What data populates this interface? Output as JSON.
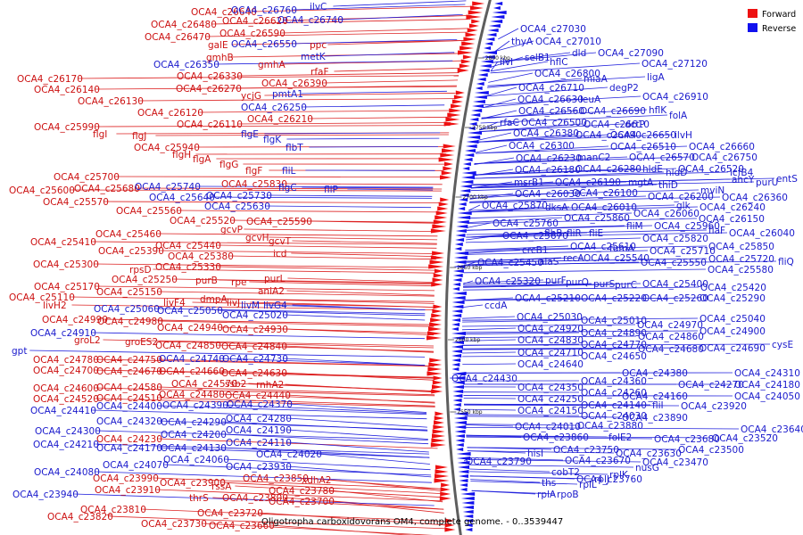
{
  "caption": "Oligotropha carboxidovorans OM4, complete genome. - 0..3539447",
  "legend": {
    "forward": {
      "label": "Forward",
      "color": "#ee1111"
    },
    "reverse": {
      "label": "Reverse",
      "color": "#1111ee"
    }
  },
  "ticks": [
    "2800 kbp",
    "2750 kbp",
    "2700 kbp",
    "2650 kbp",
    "2600 kbp",
    "2550 kbp"
  ],
  "forward_labels": [
    [
      "OCA4_c26640",
      214,
      17
    ],
    [
      "OCA4_c26480",
      169,
      31
    ],
    [
      "OCA4_c26620",
      249,
      27
    ],
    [
      "OCA4_c26470",
      162,
      45
    ],
    [
      "OCA4_c26590",
      246,
      41
    ],
    [
      "galE",
      233,
      54
    ],
    [
      "ppc",
      347,
      54
    ],
    [
      "gmhB",
      231,
      68
    ],
    [
      "gmhA",
      289,
      76
    ],
    [
      "rfaF",
      348,
      84
    ],
    [
      "OCA4_c26330",
      198,
      89
    ],
    [
      "OCA4_c26390",
      293,
      97
    ],
    [
      "OCA4_c26170",
      19,
      92
    ],
    [
      "OCA4_c26270",
      197,
      103
    ],
    [
      "OCA4_c26140",
      38,
      104
    ],
    [
      "ycjG",
      270,
      111
    ],
    [
      "OCA4_c26130",
      87,
      117
    ],
    [
      "OCA4_c26120",
      154,
      130
    ],
    [
      "OCA4_c26210",
      277,
      137
    ],
    [
      "OCA4_c26110",
      198,
      143
    ],
    [
      "OCA4_c25990",
      38,
      146
    ],
    [
      "flgI",
      104,
      154
    ],
    [
      "flgJ",
      148,
      156
    ],
    [
      "OCA4_c25940",
      150,
      169
    ],
    [
      "flgH",
      193,
      177
    ],
    [
      "flgA",
      216,
      182
    ],
    [
      "flgG",
      246,
      188
    ],
    [
      "flgF",
      275,
      195
    ],
    [
      "OCA4_c25830",
      248,
      210
    ],
    [
      "OCA4_c25700",
      60,
      202
    ],
    [
      "OCA4_c25680",
      83,
      215
    ],
    [
      "OCA4_c25600",
      10,
      217
    ],
    [
      "OCA4_c25570",
      48,
      230
    ],
    [
      "OCA4_c25560",
      130,
      240
    ],
    [
      "OCA4_c25520",
      190,
      251
    ],
    [
      "OCA4_c25590",
      276,
      252
    ],
    [
      "gcvP",
      247,
      261
    ],
    [
      "OCA4_c25460",
      107,
      266
    ],
    [
      "gcvH",
      275,
      270
    ],
    [
      "gcvT",
      301,
      274
    ],
    [
      "OCA4_c25410",
      34,
      275
    ],
    [
      "OCA4_c25440",
      174,
      279
    ],
    [
      "OCA4_c25390",
      110,
      285
    ],
    [
      "OCA4_c25380",
      188,
      291
    ],
    [
      "icd",
      306,
      288
    ],
    [
      "OCA4_c25300",
      37,
      300
    ],
    [
      "OCA4_c25330",
      174,
      303
    ],
    [
      "rpsD",
      145,
      306
    ],
    [
      "OCA4_c25250",
      125,
      317
    ],
    [
      "purB",
      219,
      318
    ],
    [
      "rpe",
      259,
      320
    ],
    [
      "purL",
      296,
      316
    ],
    [
      "aniA2",
      289,
      330
    ],
    [
      "OCA4_c25170",
      38,
      325
    ],
    [
      "OCA4_c25150",
      108,
      331
    ],
    [
      "OCA4_c25110",
      10,
      337
    ],
    [
      "dmpA",
      224,
      339
    ],
    [
      "livF4",
      183,
      343
    ],
    [
      "livH2",
      48,
      346
    ],
    [
      "livJ",
      254,
      343
    ],
    [
      "OCA4_c24990",
      47,
      362
    ],
    [
      "OCA4_c24980",
      109,
      364
    ],
    [
      "OCA4_c24940",
      176,
      371
    ],
    [
      "OCA4_c24930",
      249,
      373
    ],
    [
      "groL2",
      83,
      385
    ],
    [
      "groES2",
      140,
      387
    ],
    [
      "OCA4_c24850",
      174,
      391
    ],
    [
      "OCA4_c24840",
      248,
      392
    ],
    [
      "OCA4_c24780",
      37,
      407
    ],
    [
      "OCA4_c24750",
      108,
      407
    ],
    [
      "OCA4_c24700",
      37,
      419
    ],
    [
      "OCA4_c24670",
      108,
      420
    ],
    [
      "OCA4_c24660",
      178,
      420
    ],
    [
      "OCA4_c24630",
      248,
      422
    ],
    [
      "OCA4_c24600",
      37,
      439
    ],
    [
      "OCA4_c24580",
      108,
      438
    ],
    [
      "OCA4_c24570",
      192,
      434
    ],
    [
      "ssb2",
      252,
      434
    ],
    [
      "rnhA2",
      287,
      435
    ],
    [
      "OCA4_c24520",
      37,
      451
    ],
    [
      "OCA4_c24510",
      108,
      450
    ],
    [
      "OCA4_c24480",
      178,
      446
    ],
    [
      "OCA4_c24440",
      252,
      447
    ],
    [
      "OCA4_c24230",
      108,
      496
    ],
    [
      "OCA4_c23990",
      104,
      540
    ],
    [
      "OCA4_c23900",
      179,
      545
    ],
    [
      "OCA4_c23850",
      272,
      540
    ],
    [
      "rssA",
      237,
      549
    ],
    [
      "xdhA2",
      338,
      542
    ],
    [
      "OCA4_c23910",
      106,
      553
    ],
    [
      "OCA4_c23780",
      301,
      554
    ],
    [
      "thrS",
      212,
      562
    ],
    [
      "OCA4_c23800",
      249,
      562
    ],
    [
      "OCA4_c23700",
      301,
      566
    ],
    [
      "OCA4_c23810",
      90,
      575
    ],
    [
      "OCA4_c23720",
      221,
      579
    ],
    [
      "OCA4_c23820",
      53,
      583
    ],
    [
      "OCA4_c23730",
      158,
      591
    ],
    [
      "OCA4_c23660",
      234,
      593
    ]
  ],
  "reverse_labels": [
    [
      "OCA4_c26760",
      259,
      15
    ],
    [
      "ilvC",
      347,
      11
    ],
    [
      "OCA4_c26740",
      311,
      26
    ],
    [
      "OCA4_c26550",
      259,
      53
    ],
    [
      "metK",
      337,
      67
    ],
    [
      "OCA4_c26350",
      172,
      76
    ],
    [
      "pmtA1",
      305,
      109
    ],
    [
      "OCA4_c26250",
      270,
      124
    ],
    [
      "flgE",
      270,
      154
    ],
    [
      "flgK",
      295,
      160
    ],
    [
      "flbT",
      320,
      169
    ],
    [
      "fliL",
      316,
      195
    ],
    [
      "OCA4_c25740",
      151,
      213
    ],
    [
      "flgC",
      312,
      214
    ],
    [
      "fliP",
      363,
      216
    ],
    [
      "OCA4_c25640",
      167,
      225
    ],
    [
      "OCA4_c25730",
      231,
      223
    ],
    [
      "OCA4_c25630",
      229,
      235
    ],
    [
      "OCA4_c25060",
      105,
      350
    ],
    [
      "OCA4_c25050",
      176,
      352
    ],
    [
      "livM",
      270,
      346
    ],
    [
      "livG4",
      295,
      346
    ],
    [
      "OCA4_c25020",
      249,
      357
    ],
    [
      "OCA4_c24910",
      34,
      377
    ],
    [
      "gpt",
      13,
      397
    ],
    [
      "OCA4_c24740",
      178,
      406
    ],
    [
      "OCA4_c24730",
      249,
      406
    ],
    [
      "OCA4_c24410",
      34,
      464
    ],
    [
      "OCA4_c24400",
      108,
      459
    ],
    [
      "OCA4_c24390",
      182,
      458
    ],
    [
      "OCA4_c24370",
      254,
      457
    ],
    [
      "OCA4_c24320",
      108,
      476
    ],
    [
      "OCA4_c24290",
      180,
      477
    ],
    [
      "OCA4_c24280",
      253,
      473
    ],
    [
      "OCA4_c24300",
      39,
      487
    ],
    [
      "OCA4_c24200",
      180,
      491
    ],
    [
      "OCA4_c24190",
      253,
      486
    ],
    [
      "OCA4_c24170",
      108,
      506
    ],
    [
      "OCA4_c24130",
      180,
      506
    ],
    [
      "OCA4_c24110",
      253,
      500
    ],
    [
      "OCA4_c24210",
      37,
      502
    ],
    [
      "OCA4_c24060",
      183,
      519
    ],
    [
      "OCA4_c24020",
      287,
      513
    ],
    [
      "OCA4_c24080",
      38,
      533
    ],
    [
      "OCA4_c24070",
      115,
      525
    ],
    [
      "OCA4_c23930",
      253,
      527
    ],
    [
      "OCA4_c23940",
      14,
      558
    ]
  ],
  "right_labels": [
    [
      "OCA4_c27030",
      583,
      36
    ],
    [
      "thyA",
      573,
      50
    ],
    [
      "OCA4_c27010",
      600,
      50
    ],
    [
      "dld",
      641,
      63
    ],
    [
      "OCA4_c27090",
      670,
      63
    ],
    [
      "selB1",
      588,
      68
    ],
    [
      "hflC",
      616,
      73
    ],
    [
      "ilvI",
      560,
      73
    ],
    [
      "OCA4_c27120",
      719,
      75
    ],
    [
      "OCA4_c26800",
      599,
      86
    ],
    [
      "ligA",
      725,
      90
    ],
    [
      "miaA",
      654,
      92
    ],
    [
      "degP2",
      683,
      102
    ],
    [
      "OCA4_c26710",
      581,
      102
    ],
    [
      "OCA4_c26910",
      720,
      112
    ],
    [
      "OCA4_c26630",
      580,
      115
    ],
    [
      "leuA",
      650,
      115
    ],
    [
      "hflK",
      727,
      127
    ],
    [
      "OCA4_c26560",
      581,
      128
    ],
    [
      "OCA4_c26690",
      650,
      128
    ],
    [
      "folA",
      750,
      133
    ],
    [
      "dctP",
      700,
      143
    ],
    [
      "rfaC",
      560,
      141
    ],
    [
      "OCA4_c26500",
      584,
      141
    ],
    [
      "OCA4_c26610",
      654,
      143
    ],
    [
      "OCA4_c26380",
      575,
      153
    ],
    [
      "OCA4_c26490",
      645,
      155
    ],
    [
      "OCA4_c26650",
      684,
      155
    ],
    [
      "ilvH",
      756,
      155
    ],
    [
      "OCA4_c26510",
      684,
      168
    ],
    [
      "OCA4_c26660",
      772,
      168
    ],
    [
      "OCA4_c26300",
      570,
      167
    ],
    [
      "OCA4_c26230",
      578,
      181
    ],
    [
      "manC2",
      647,
      180
    ],
    [
      "OCA4_c26570",
      705,
      180
    ],
    [
      "OCA4_c26750",
      775,
      180
    ],
    [
      "OCA4_c26180",
      577,
      194
    ],
    [
      "OCA4_c26280",
      645,
      193
    ],
    [
      "hldE",
      720,
      193
    ],
    [
      "hldD",
      746,
      197
    ],
    [
      "OCA4_c26520",
      760,
      193
    ],
    [
      "lcfB4",
      818,
      197
    ],
    [
      "msrB1",
      576,
      208
    ],
    [
      "OCA4_c26190",
      622,
      208
    ],
    [
      "mgtA",
      704,
      208
    ],
    [
      "thiD",
      738,
      211
    ],
    [
      "ahcY",
      820,
      205
    ],
    [
      "purU",
      847,
      208
    ],
    [
      "entS",
      870,
      204
    ],
    [
      "OCA4_c26030",
      577,
      221
    ],
    [
      "OCA4_c26100",
      641,
      220
    ],
    [
      "OCA4_c26200",
      726,
      224
    ],
    [
      "mviN",
      785,
      217
    ],
    [
      "OCA4_c26360",
      809,
      225
    ],
    [
      "OCA4_c25870",
      540,
      234
    ],
    [
      "dksA",
      611,
      236
    ],
    [
      "OCA4_c26010",
      640,
      236
    ],
    [
      "glk",
      758,
      234
    ],
    [
      "OCA4_c26240",
      784,
      236
    ],
    [
      "OCA4_c26060",
      710,
      243
    ],
    [
      "OCA4_c26150",
      783,
      249
    ],
    [
      "OCA4_c25760",
      552,
      254
    ],
    [
      "OCA4_c25860",
      632,
      248
    ],
    [
      "fliM",
      702,
      257
    ],
    [
      "OCA4_c25960",
      733,
      257
    ],
    [
      "flaF",
      794,
      262
    ],
    [
      "OCA4_c26040",
      817,
      265
    ],
    [
      "OCA4_c25670",
      563,
      268
    ],
    [
      "flhB",
      610,
      265
    ],
    [
      "fliR",
      635,
      265
    ],
    [
      "fliE",
      660,
      265
    ],
    [
      "OCA4_c25820",
      720,
      271
    ],
    [
      "crcB1",
      585,
      284
    ],
    [
      "OCA4_c25610",
      639,
      280
    ],
    [
      "fumA",
      683,
      282
    ],
    [
      "OCA4_c25710",
      728,
      285
    ],
    [
      "OCA4_c25850",
      794,
      280
    ],
    [
      "recA",
      631,
      293
    ],
    [
      "OCA4_c25540",
      654,
      293
    ],
    [
      "OCA4_c25720",
      794,
      294
    ],
    [
      "fliQ",
      872,
      297
    ],
    [
      "OCA4_c25450",
      535,
      298
    ],
    [
      "alaS",
      604,
      297
    ],
    [
      "OCA4_c25550",
      718,
      298
    ],
    [
      "OCA4_c25580",
      793,
      306
    ],
    [
      "OCA4_c25320",
      532,
      319
    ],
    [
      "purF",
      611,
      318
    ],
    [
      "purQ",
      634,
      320
    ],
    [
      "purS",
      665,
      322
    ],
    [
      "purC",
      689,
      323
    ],
    [
      "OCA4_c25400",
      720,
      322
    ],
    [
      "OCA4_c25420",
      785,
      326
    ],
    [
      "OCA4_c25210",
      577,
      338
    ],
    [
      "OCA4_c25220",
      651,
      338
    ],
    [
      "OCA4_c25260",
      720,
      338
    ],
    [
      "OCA4_c25290",
      784,
      338
    ],
    [
      "ccdA",
      543,
      346
    ],
    [
      "OCA4_c25030",
      579,
      359
    ],
    [
      "OCA4_c25010",
      651,
      363
    ],
    [
      "OCA4_c25040",
      784,
      361
    ],
    [
      "OCA4_c24920",
      580,
      372
    ],
    [
      "OCA4_c24970",
      714,
      368
    ],
    [
      "OCA4_c24890",
      651,
      377
    ],
    [
      "OCA4_c24860",
      715,
      381
    ],
    [
      "OCA4_c24900",
      784,
      375
    ],
    [
      "OCA4_c24830",
      580,
      385
    ],
    [
      "OCA4_c24770",
      651,
      390
    ],
    [
      "OCA4_c24710",
      580,
      399
    ],
    [
      "OCA4_c24650",
      651,
      403
    ],
    [
      "OCA4_c24680",
      715,
      395
    ],
    [
      "OCA4_c24690",
      784,
      394
    ],
    [
      "cysE",
      865,
      390
    ],
    [
      "OCA4_c24640",
      580,
      412
    ],
    [
      "OCA4_c24430",
      506,
      428
    ],
    [
      "OCA4_c24380",
      697,
      422
    ],
    [
      "OCA4_c24310",
      823,
      422
    ],
    [
      "OCA4_c24350",
      580,
      438
    ],
    [
      "OCA4_c24360",
      651,
      431
    ],
    [
      "OCA4_c24270",
      760,
      435
    ],
    [
      "OCA4_c24180",
      823,
      435
    ],
    [
      "OCA4_c24250",
      580,
      451
    ],
    [
      "OCA4_c24260",
      651,
      444
    ],
    [
      "OCA4_c24160",
      697,
      448
    ],
    [
      "OCA4_c24050",
      823,
      448
    ],
    [
      "OCA4_c24150",
      580,
      464
    ],
    [
      "OCA4_c24140",
      651,
      458
    ],
    [
      "fliI",
      731,
      458
    ],
    [
      "OCA4_c23920",
      763,
      459
    ],
    [
      "OCA4_c24030",
      651,
      470
    ],
    [
      "OCA4_c23890",
      697,
      472
    ],
    [
      "OCA4_c24010",
      577,
      482
    ],
    [
      "OCA4_c23880",
      647,
      481
    ],
    [
      "OCA4_c23640",
      830,
      485
    ],
    [
      "OCA4_c23860",
      586,
      494
    ],
    [
      "folE2",
      682,
      494
    ],
    [
      "OCA4_c23680",
      733,
      496
    ],
    [
      "OCA4_c23520",
      798,
      495
    ],
    [
      "OCA4_c23790",
      522,
      521
    ],
    [
      "hisI",
      591,
      512
    ],
    [
      "OCA4_c23750",
      620,
      508
    ],
    [
      "OCA4_c23630",
      690,
      512
    ],
    [
      "OCA4_c23500",
      760,
      508
    ],
    [
      "OCA4_c23670",
      633,
      520
    ],
    [
      "OCA4_c23470",
      720,
      522
    ],
    [
      "cobT2",
      618,
      533
    ],
    [
      "OCA4_c23760",
      646,
      541
    ],
    [
      "nusG",
      712,
      528
    ],
    [
      "rplK",
      683,
      536
    ],
    [
      "rplJ",
      666,
      541
    ],
    [
      "ths",
      607,
      545
    ],
    [
      "rplL",
      649,
      547
    ],
    [
      "rpoB",
      624,
      558
    ],
    [
      "rplA",
      602,
      558
    ]
  ]
}
